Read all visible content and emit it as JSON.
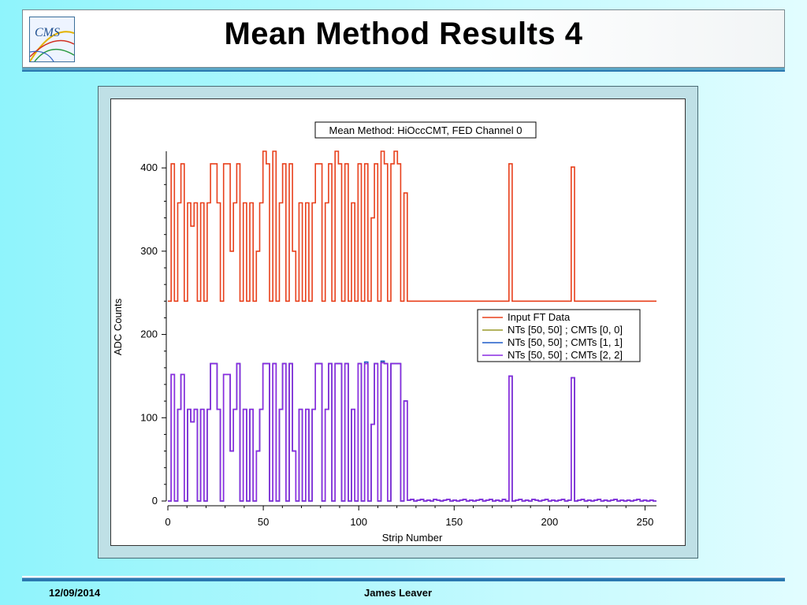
{
  "slide": {
    "title": "Mean Method Results 4",
    "footer_date": "12/09/2014",
    "footer_author": "James Leaver",
    "logo_text": "CMS"
  },
  "chart_data": {
    "type": "line",
    "title": "Mean Method: HiOccCMT, FED Channel 0",
    "xlabel": "Strip Number",
    "ylabel": "ADC Counts",
    "xlim": [
      0,
      256
    ],
    "ylim": [
      0,
      420
    ],
    "xticks": [
      0,
      50,
      100,
      150,
      200,
      250
    ],
    "yticks": [
      0,
      100,
      200,
      300,
      400
    ],
    "grid": false,
    "legend_position": "right",
    "series": [
      {
        "name": "Input FT Data",
        "color": "#e8401c",
        "values": [
          240,
          405,
          240,
          358,
          405,
          240,
          358,
          330,
          358,
          240,
          358,
          240,
          358,
          405,
          405,
          358,
          240,
          405,
          405,
          300,
          358,
          405,
          240,
          358,
          240,
          358,
          240,
          300,
          358,
          420,
          405,
          240,
          420,
          240,
          358,
          405,
          240,
          405,
          300,
          240,
          358,
          240,
          358,
          240,
          358,
          405,
          405,
          240,
          358,
          405,
          240,
          420,
          405,
          240,
          405,
          240,
          358,
          240,
          405,
          240,
          405,
          240,
          340,
          405,
          240,
          420,
          405,
          240,
          405,
          420,
          405,
          240,
          370,
          240,
          240,
          240,
          240,
          240,
          240,
          240,
          240,
          240,
          240,
          240,
          240,
          240,
          240,
          240,
          240,
          240,
          240,
          240,
          240,
          240,
          240,
          240,
          240,
          240,
          240,
          240,
          240,
          240,
          240,
          240,
          405,
          240,
          240,
          240,
          240,
          240,
          240,
          240,
          240,
          240,
          240,
          240,
          240,
          240,
          240,
          240,
          240,
          240,
          240,
          401,
          240,
          240,
          240,
          240,
          240,
          240,
          240,
          240,
          240,
          240,
          240,
          240,
          240,
          240,
          240,
          240,
          240,
          240,
          240,
          240,
          240,
          240,
          240,
          240,
          240
        ]
      },
      {
        "name": "NTs [50, 50] ; CMTs [0, 0]",
        "color": "#9a9a2a",
        "values": [
          0,
          152,
          0,
          110,
          152,
          0,
          110,
          95,
          110,
          0,
          110,
          0,
          110,
          165,
          165,
          110,
          0,
          152,
          152,
          60,
          110,
          165,
          0,
          110,
          0,
          110,
          0,
          60,
          110,
          165,
          165,
          0,
          165,
          0,
          110,
          165,
          0,
          165,
          60,
          0,
          110,
          0,
          110,
          0,
          110,
          165,
          165,
          0,
          110,
          165,
          0,
          165,
          165,
          0,
          165,
          0,
          110,
          0,
          165,
          0,
          165,
          0,
          92,
          165,
          0,
          167,
          165,
          0,
          165,
          165,
          165,
          0,
          120,
          1,
          2,
          0,
          1,
          2,
          0,
          1,
          0,
          2,
          1,
          0,
          1,
          2,
          0,
          1,
          0,
          1,
          2,
          0,
          1,
          0,
          1,
          2,
          0,
          1,
          2,
          0,
          1,
          0,
          2,
          0,
          150,
          0,
          1,
          2,
          0,
          1,
          0,
          2,
          1,
          0,
          1,
          2,
          0,
          1,
          0,
          1,
          2,
          0,
          1,
          148,
          0,
          1,
          2,
          0,
          1,
          0,
          1,
          2,
          0,
          1,
          0,
          1,
          2,
          0,
          1,
          0,
          1,
          0,
          1,
          2,
          0,
          1,
          0,
          1,
          0
        ]
      },
      {
        "name": "NTs [50, 50] ; CMTs [1, 1]",
        "color": "#1e5bc8",
        "values": [
          0,
          152,
          0,
          110,
          152,
          0,
          110,
          95,
          110,
          0,
          110,
          0,
          110,
          165,
          165,
          110,
          0,
          152,
          152,
          60,
          110,
          165,
          0,
          110,
          0,
          110,
          0,
          60,
          110,
          165,
          165,
          0,
          165,
          0,
          110,
          165,
          0,
          165,
          60,
          0,
          110,
          0,
          110,
          0,
          110,
          165,
          165,
          0,
          110,
          165,
          0,
          165,
          165,
          0,
          165,
          0,
          110,
          0,
          165,
          0,
          167,
          0,
          92,
          165,
          0,
          168,
          165,
          0,
          165,
          165,
          165,
          0,
          120,
          1,
          2,
          0,
          1,
          2,
          0,
          1,
          0,
          2,
          1,
          0,
          1,
          2,
          0,
          1,
          0,
          1,
          2,
          0,
          1,
          0,
          1,
          2,
          0,
          1,
          2,
          0,
          1,
          0,
          2,
          0,
          150,
          0,
          1,
          2,
          0,
          1,
          0,
          2,
          1,
          0,
          1,
          2,
          0,
          1,
          0,
          1,
          2,
          0,
          1,
          148,
          0,
          1,
          2,
          0,
          1,
          0,
          1,
          2,
          0,
          1,
          0,
          1,
          2,
          0,
          1,
          0,
          1,
          0,
          1,
          2,
          0,
          1,
          0,
          1,
          0
        ]
      },
      {
        "name": "NTs [50, 50] ; CMTs [2, 2]",
        "color": "#8a2be2",
        "values": [
          0,
          152,
          0,
          110,
          152,
          0,
          110,
          95,
          110,
          0,
          110,
          0,
          110,
          165,
          165,
          110,
          0,
          152,
          152,
          60,
          110,
          165,
          0,
          110,
          0,
          110,
          0,
          60,
          110,
          165,
          165,
          0,
          165,
          0,
          110,
          165,
          0,
          165,
          60,
          0,
          110,
          0,
          110,
          0,
          110,
          165,
          165,
          0,
          110,
          165,
          0,
          165,
          165,
          0,
          165,
          0,
          110,
          0,
          165,
          0,
          165,
          0,
          92,
          165,
          0,
          166,
          165,
          0,
          165,
          165,
          165,
          0,
          120,
          1,
          2,
          0,
          1,
          2,
          0,
          1,
          0,
          2,
          1,
          0,
          1,
          2,
          0,
          1,
          0,
          1,
          2,
          0,
          1,
          0,
          1,
          2,
          0,
          1,
          2,
          0,
          1,
          0,
          2,
          0,
          150,
          0,
          1,
          2,
          0,
          1,
          0,
          2,
          1,
          0,
          1,
          2,
          0,
          1,
          0,
          1,
          2,
          0,
          1,
          148,
          0,
          1,
          2,
          0,
          1,
          0,
          1,
          2,
          0,
          1,
          0,
          1,
          2,
          0,
          1,
          0,
          1,
          0,
          1,
          2,
          0,
          1,
          0,
          1,
          0
        ]
      }
    ]
  }
}
